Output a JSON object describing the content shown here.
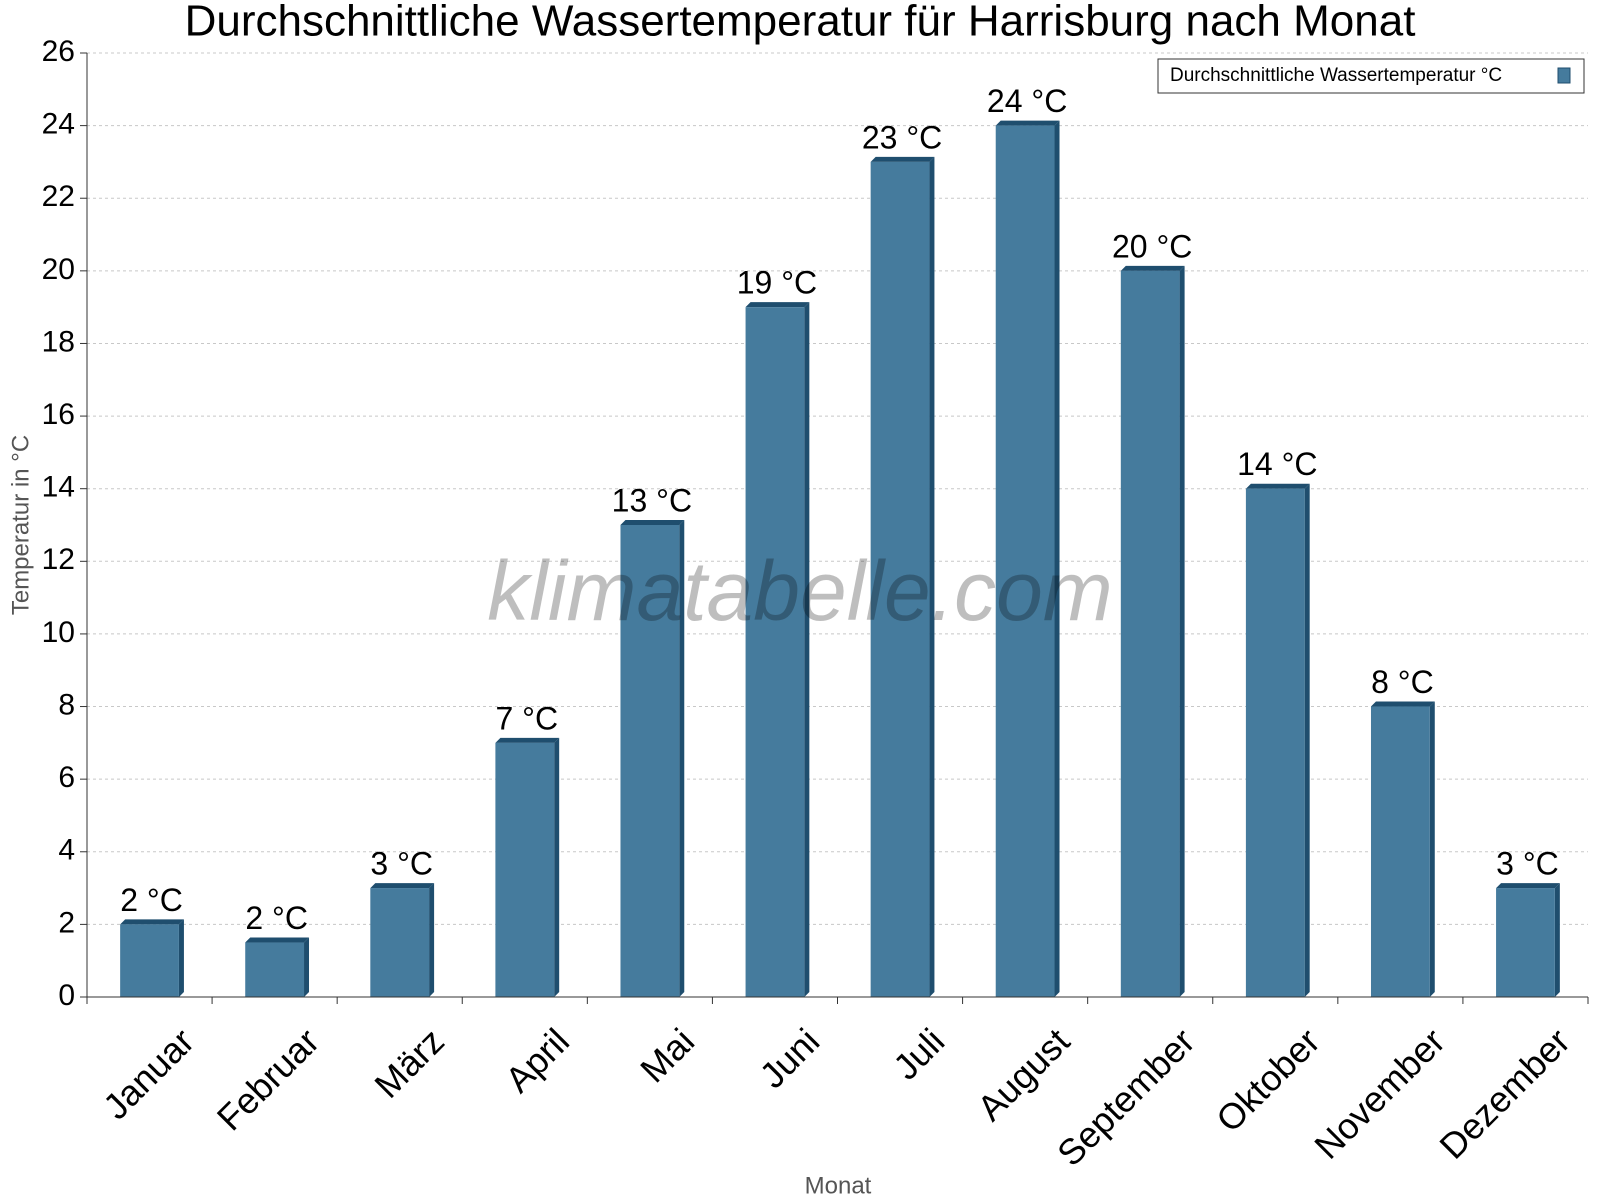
{
  "chart_data": {
    "type": "bar",
    "title": "Durchschnittliche Wassertemperatur für Harrisburg nach Monat",
    "x_label": "Monat",
    "y_label": "Temperatur in °C",
    "watermark": "klimatabelle.com",
    "categories": [
      "Januar",
      "Februar",
      "März",
      "April",
      "Mai",
      "Juni",
      "Juli",
      "August",
      "September",
      "Oktober",
      "November",
      "Dezember"
    ],
    "series": [
      {
        "name": "Durchschnittliche Wassertemperatur °C",
        "color": "#457b9d",
        "values": [
          2,
          1.5,
          3,
          7,
          13,
          19,
          23,
          24,
          20,
          14,
          8,
          3
        ],
        "value_labels": [
          "2 °C",
          "2 °C",
          "3 °C",
          "7 °C",
          "13 °C",
          "19 °C",
          "23 °C",
          "24 °C",
          "20 °C",
          "14 °C",
          "8 °C",
          "3 °C"
        ]
      }
    ],
    "ylim": [
      0,
      26
    ],
    "yticks": [
      0,
      2,
      4,
      6,
      8,
      10,
      12,
      14,
      16,
      18,
      20,
      22,
      24,
      26
    ],
    "grid": true,
    "legend": "top-right"
  }
}
